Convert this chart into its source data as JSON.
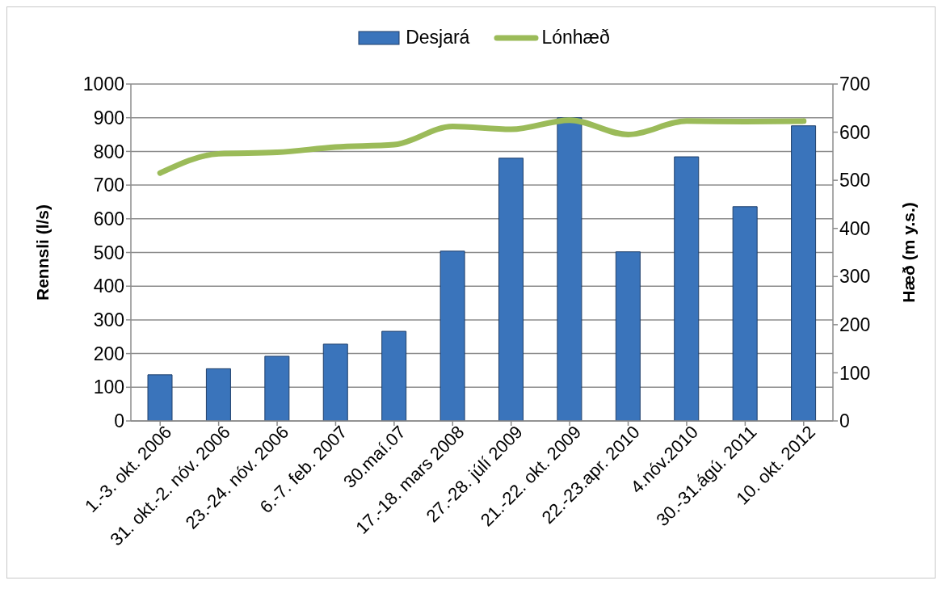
{
  "chart_data": {
    "type": "bar",
    "categories": [
      "1.-3. okt. 2006",
      "31. okt.-2. nóv. 2006",
      "23.-24. nóv. 2006",
      "6.-7. feb. 2007",
      "30.maí.07",
      "17.-18. mars 2008",
      "27.-28. júlí 2009",
      "21.-22. okt. 2009",
      "22.-23.apr. 2010",
      "4.nóv.2010",
      "30.-31.ágú. 2011",
      "10. okt. 2012"
    ],
    "series": [
      {
        "name": "Desjará",
        "color": "#3a74bb",
        "values": [
          137,
          155,
          192,
          228,
          266,
          504,
          780,
          900,
          502,
          784,
          636,
          876
        ]
      },
      {
        "name": "Lónhæð",
        "type": "line",
        "axis": "y2",
        "color": "#9bbb59",
        "values": [
          515,
          555,
          558,
          569,
          574,
          612,
          606,
          625,
          595,
          623,
          622,
          623
        ]
      }
    ],
    "ylabel": "Rennsli (l/s)",
    "y2label": "Hæð (m y.s.)",
    "ylim": [
      0,
      1000
    ],
    "yticks": [
      0,
      100,
      200,
      300,
      400,
      500,
      600,
      700,
      800,
      900,
      1000
    ],
    "y2lim": [
      0,
      700
    ],
    "y2ticks": [
      0,
      100,
      200,
      300,
      400,
      500,
      600,
      700
    ],
    "grid": "y",
    "legend": "top",
    "marker": "none"
  }
}
